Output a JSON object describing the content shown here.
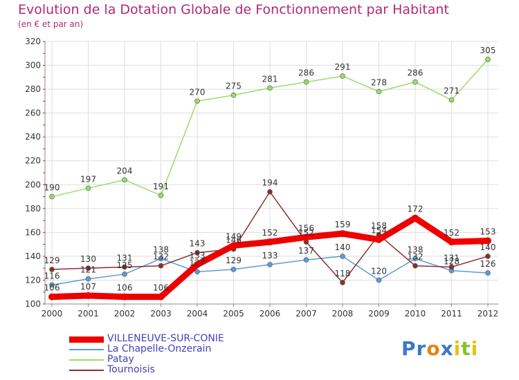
{
  "title": "Evolution de la Dotation Globale de Fonctionnement par Habitant",
  "subtitle": "(en € et par an)",
  "logo_text": "Proxiti",
  "chart_data": {
    "type": "line",
    "title": "Evolution de la Dotation Globale de Fonctionnement par Habitant",
    "subtitle": "(en € et par an)",
    "xlabel": "",
    "ylabel": "",
    "x": [
      "2000",
      "2001",
      "2002",
      "2003",
      "2004",
      "2005",
      "2006",
      "2007",
      "2008",
      "2009",
      "2010",
      "2011",
      "2012"
    ],
    "ylim": [
      100,
      320
    ],
    "yticks": [
      100,
      120,
      140,
      160,
      180,
      200,
      220,
      240,
      260,
      280,
      300,
      320
    ],
    "grid": true,
    "legend_position": "bottom-left",
    "series": [
      {
        "name": "VILLENEUVE-SUR-CONIE",
        "color": "#ee0000",
        "values": [
          106,
          107,
          106,
          106,
          133,
          149,
          152,
          156,
          159,
          154,
          172,
          152,
          153
        ]
      },
      {
        "name": "La Chapelle-Onzerain",
        "color": "#5b9bd5",
        "values": [
          116,
          121,
          125,
          138,
          127,
          129,
          133,
          137,
          140,
          120,
          138,
          128,
          126
        ]
      },
      {
        "name": "Patay",
        "color": "#99dd66",
        "values": [
          190,
          197,
          204,
          191,
          270,
          275,
          281,
          286,
          291,
          278,
          286,
          271,
          305
        ]
      },
      {
        "name": "Tournoisis",
        "color": "#8b2f2f",
        "values": [
          129,
          130,
          131,
          132,
          143,
          146,
          194,
          152,
          118,
          158,
          132,
          131,
          140
        ]
      }
    ]
  }
}
